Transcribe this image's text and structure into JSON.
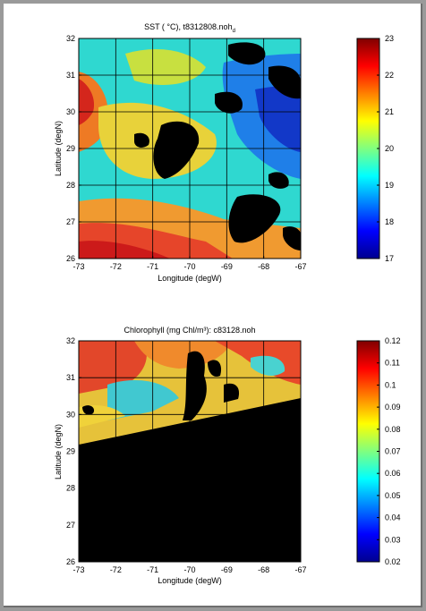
{
  "chart_data": [
    {
      "type": "heatmap",
      "title": "SST ( °C), t8312808.noh",
      "title_subscript": "d",
      "xlabel": "Longitude (degW)",
      "ylabel": "Latitude (degN)",
      "xlim": [
        -73,
        -67
      ],
      "ylim": [
        26,
        32
      ],
      "xticks": [
        -73,
        -72,
        -71,
        -70,
        -69,
        -68,
        -67
      ],
      "yticks": [
        26,
        27,
        28,
        29,
        30,
        31,
        32
      ],
      "grid": true,
      "colorbar": {
        "min": 17,
        "max": 23,
        "ticks": [
          17,
          18,
          19,
          20,
          21,
          22,
          23
        ],
        "colormap": "jet"
      }
    },
    {
      "type": "heatmap",
      "title": "Chlorophyll (mg Chl/m³): c83128.noh",
      "xlabel": "Longitude (degW)",
      "ylabel": "Latitude (degN)",
      "xlim": [
        -73,
        -67
      ],
      "ylim": [
        26,
        32
      ],
      "xticks": [
        -73,
        -72,
        -71,
        -70,
        -69,
        -68,
        -67
      ],
      "yticks": [
        26,
        27,
        28,
        29,
        30,
        31,
        32
      ],
      "grid": true,
      "no_data_color": "#000000",
      "colorbar": {
        "min": 0.02,
        "max": 0.12,
        "ticks": [
          0.02,
          0.03,
          0.04,
          0.05,
          0.06,
          0.07,
          0.08,
          0.09,
          0.1,
          0.11,
          0.12
        ],
        "colormap": "jet"
      }
    }
  ]
}
